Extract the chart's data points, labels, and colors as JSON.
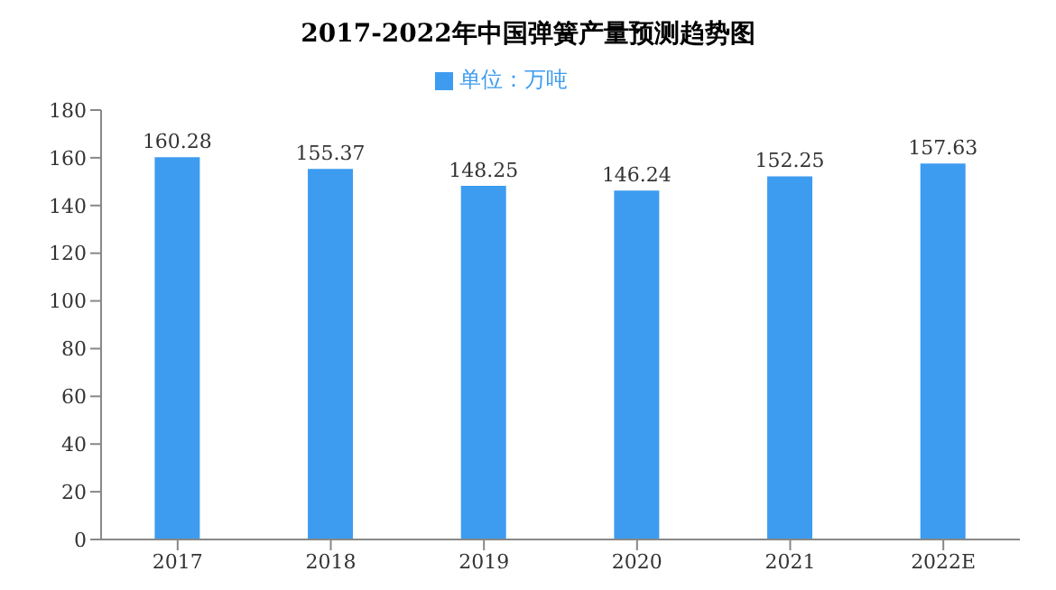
{
  "chart_data": {
    "type": "bar",
    "title": "2017-2022年中国弹簧产量预测趋势图",
    "categories": [
      "2017",
      "2018",
      "2019",
      "2020",
      "2021",
      "2022E"
    ],
    "series": [
      {
        "name": "单位：万吨",
        "color": "#3d9cf0",
        "values": [
          160.28,
          155.37,
          148.25,
          146.24,
          152.25,
          157.63
        ]
      }
    ],
    "ylim": [
      0,
      180
    ],
    "yticks": [
      0,
      20,
      40,
      60,
      80,
      100,
      120,
      140,
      160,
      180
    ],
    "grid": false,
    "legend": "top",
    "data_labels": true
  }
}
